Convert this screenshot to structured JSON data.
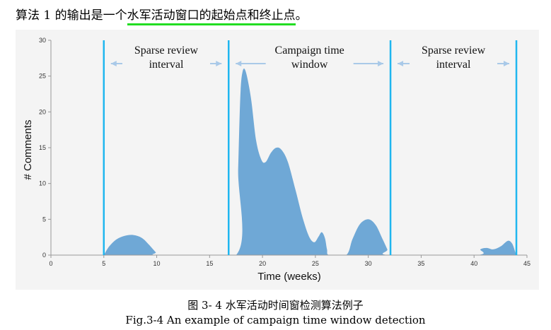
{
  "intro": {
    "prefix": "算法 1 的输出是一个",
    "highlight": "水军活动窗口的起始点和终止点",
    "suffix": "。"
  },
  "caption": {
    "cn": "图 3- 4 水军活动时间窗检测算法例子",
    "en": "Fig.3-4 An example of campaign time window detection"
  },
  "colors": {
    "area_fill": "#6fa8d6",
    "divider": "#1fb6ef",
    "arrow": "#a9c9e8",
    "axis": "#999999",
    "background": "#f4f4f4"
  },
  "chart_data": {
    "type": "area",
    "xlabel": "Time (weeks)",
    "ylabel": "# Comments",
    "xlim": [
      0,
      45
    ],
    "ylim": [
      0,
      30
    ],
    "xticks": [
      0,
      5,
      10,
      15,
      20,
      25,
      30,
      35,
      40,
      45
    ],
    "yticks": [
      0,
      5,
      10,
      15,
      20,
      25,
      30
    ],
    "series": [
      {
        "points": [
          [
            5,
            0
          ],
          [
            5.5,
            1.2
          ],
          [
            6.2,
            2.2
          ],
          [
            7,
            2.7
          ],
          [
            7.8,
            2.8
          ],
          [
            8.6,
            2.4
          ],
          [
            9.3,
            1.4
          ],
          [
            9.9,
            0.4
          ],
          [
            10.2,
            0
          ],
          [
            17.5,
            0
          ],
          [
            17.7,
            12
          ],
          [
            17.9,
            22
          ],
          [
            18.1,
            25.5
          ],
          [
            18.4,
            25.7
          ],
          [
            18.9,
            22
          ],
          [
            19.4,
            16
          ],
          [
            19.9,
            13.3
          ],
          [
            20.3,
            13
          ],
          [
            20.8,
            14.3
          ],
          [
            21.3,
            15
          ],
          [
            21.8,
            14.7
          ],
          [
            22.4,
            13
          ],
          [
            23.1,
            9.2
          ],
          [
            23.8,
            5.2
          ],
          [
            24.4,
            2.6
          ],
          [
            24.9,
            1.8
          ],
          [
            25.3,
            2.6
          ],
          [
            25.6,
            3.2
          ],
          [
            25.9,
            2.4
          ],
          [
            26.1,
            0.8
          ],
          [
            26.3,
            0
          ],
          [
            27.9,
            0
          ],
          [
            28.5,
            2.2
          ],
          [
            29.2,
            4.3
          ],
          [
            30,
            5
          ],
          [
            30.7,
            4.2
          ],
          [
            31.3,
            2.4
          ],
          [
            31.8,
            0.8
          ],
          [
            32,
            0
          ],
          [
            40.2,
            0
          ],
          [
            40.6,
            0.8
          ],
          [
            41.2,
            1
          ],
          [
            41.8,
            0.8
          ],
          [
            42.5,
            1.2
          ],
          [
            43.2,
            2
          ],
          [
            43.6,
            1.6
          ],
          [
            43.9,
            0.4
          ],
          [
            44,
            0
          ]
        ]
      }
    ],
    "dividers": [
      5,
      16.8,
      32.1,
      44
    ],
    "annotations": [
      {
        "lines": [
          "Sparse review",
          "interval"
        ],
        "from": 5,
        "to": 16.8
      },
      {
        "lines": [
          "Campaign time",
          "window"
        ],
        "from": 16.8,
        "to": 32.1
      },
      {
        "lines": [
          "Sparse review",
          "interval"
        ],
        "from": 32.1,
        "to": 44
      }
    ]
  }
}
